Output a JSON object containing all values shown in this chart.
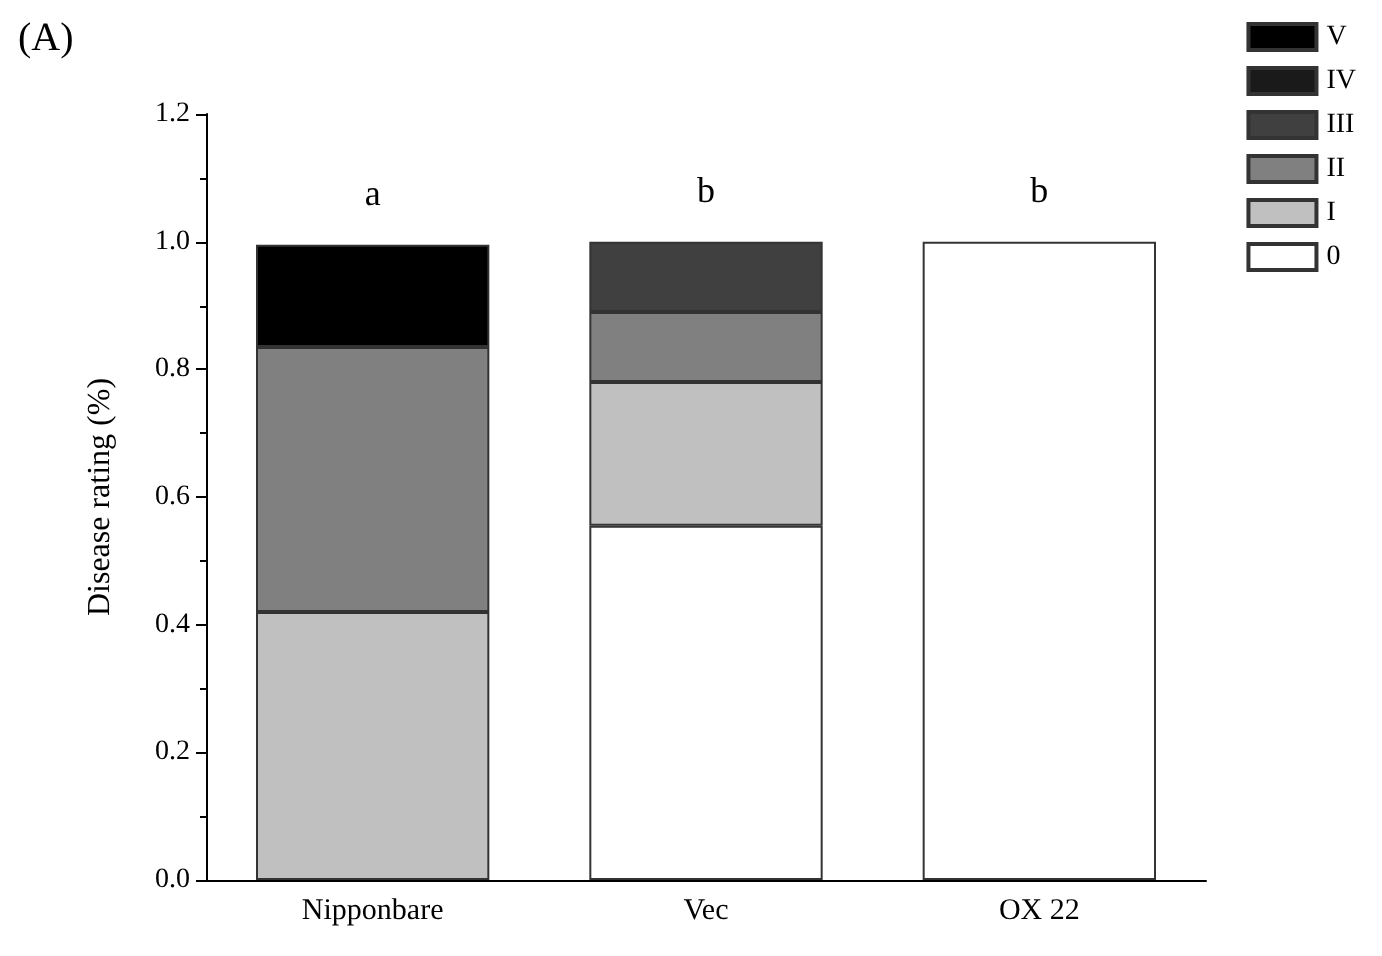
{
  "chart_data": {
    "type": "bar",
    "title": "(A)",
    "ylabel": "Disease rating (%)",
    "categories": [
      "Nipponbare",
      "Vec",
      "OX 22"
    ],
    "stacked": true,
    "series": [
      {
        "name": "0",
        "color": "#ffffff",
        "values": [
          0,
          0.555,
          1.0
        ]
      },
      {
        "name": "I",
        "color": "#c0c0c0",
        "values": [
          0.42,
          0.225,
          0
        ]
      },
      {
        "name": "II",
        "color": "#808080",
        "values": [
          0.415,
          0.11,
          0
        ]
      },
      {
        "name": "III",
        "color": "#404040",
        "values": [
          0,
          0.11,
          0
        ]
      },
      {
        "name": "IV",
        "color": "#1a1a1a",
        "values": [
          0,
          0,
          0
        ]
      },
      {
        "name": "V",
        "color": "#000000",
        "values": [
          0.16,
          0,
          0
        ]
      }
    ],
    "ylim": [
      0,
      1.2
    ],
    "yticks": [
      {
        "value": 0,
        "label": "0.0"
      },
      {
        "value": 0.2,
        "label": "0.2"
      },
      {
        "value": 0.4,
        "label": "0.4"
      },
      {
        "value": 0.6,
        "label": "0.6"
      },
      {
        "value": 0.8,
        "label": "0.8"
      },
      {
        "value": 1.0,
        "label": "1.0"
      },
      {
        "value": 1.2,
        "label": "1.2"
      }
    ],
    "annotations": [
      "a",
      "b",
      "b"
    ],
    "legend": "top right",
    "grid": false
  }
}
